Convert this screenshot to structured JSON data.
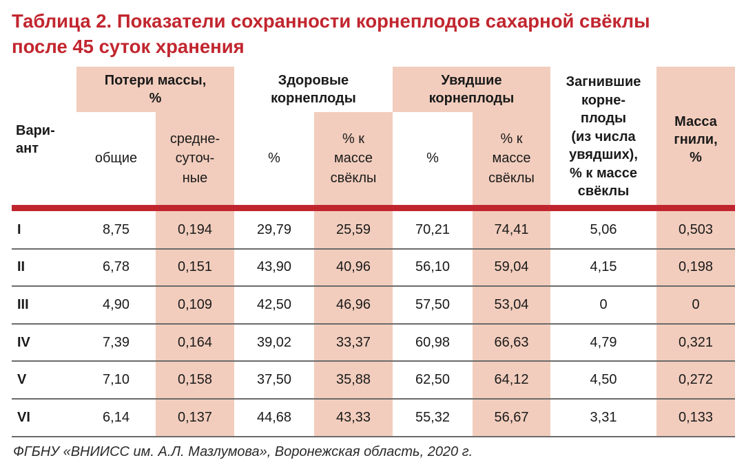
{
  "title": {
    "line1": "Таблица 2. Показатели сохранности корнеплодов сахарной свёклы",
    "line2": "после 45 суток хранения"
  },
  "header": {
    "variant": "Вари-\nант",
    "mass_loss": "Потери массы,\n%",
    "mass_loss_total": "общие",
    "mass_loss_daily": "средне-\nсуточ-\nные",
    "healthy": "Здоровые\nкорнеплоды",
    "healthy_pct": "%",
    "healthy_pct_mass": "% к\nмассе\nсвёклы",
    "wilted": "Увядшие\nкорнеплоды",
    "wilted_pct": "%",
    "wilted_pct_mass": "% к\nмассе\nсвёклы",
    "rotten": "Загнившие\nкорне-\nплоды\n(из числа\nувядших),\n% к массе\nсвёклы",
    "rot_mass": "Масса\nгнили,\n%"
  },
  "rows": [
    {
      "variant": "I",
      "total": "8,75",
      "daily": "0,194",
      "healthy_pct": "29,79",
      "healthy_mass": "25,59",
      "wilted_pct": "70,21",
      "wilted_mass": "74,41",
      "rotten": "5,06",
      "rot_mass": "0,503"
    },
    {
      "variant": "II",
      "total": "6,78",
      "daily": "0,151",
      "healthy_pct": "43,90",
      "healthy_mass": "40,96",
      "wilted_pct": "56,10",
      "wilted_mass": "59,04",
      "rotten": "4,15",
      "rot_mass": "0,198"
    },
    {
      "variant": "III",
      "total": "4,90",
      "daily": "0,109",
      "healthy_pct": "42,50",
      "healthy_mass": "46,96",
      "wilted_pct": "57,50",
      "wilted_mass": "53,04",
      "rotten": "0",
      "rot_mass": "0"
    },
    {
      "variant": "IV",
      "total": "7,39",
      "daily": "0,164",
      "healthy_pct": "39,02",
      "healthy_mass": "33,37",
      "wilted_pct": "60,98",
      "wilted_mass": "66,63",
      "rotten": "4,79",
      "rot_mass": "0,321"
    },
    {
      "variant": "V",
      "total": "7,10",
      "daily": "0,158",
      "healthy_pct": "37,50",
      "healthy_mass": "35,88",
      "wilted_pct": "62,50",
      "wilted_mass": "64,12",
      "rotten": "4,50",
      "rot_mass": "0,272"
    },
    {
      "variant": "VI",
      "total": "6,14",
      "daily": "0,137",
      "healthy_pct": "44,68",
      "healthy_mass": "43,33",
      "wilted_pct": "55,32",
      "wilted_mass": "56,67",
      "rotten": "3,31",
      "rot_mass": "0,133"
    }
  ],
  "source": "ФГБНУ «ВНИИСС им. А.Л. Мазлумова», Воронежская область, 2020 г.",
  "colors": {
    "accent": "#c2262f",
    "shade": "#f2cdbd",
    "rule": "#c0252e"
  }
}
